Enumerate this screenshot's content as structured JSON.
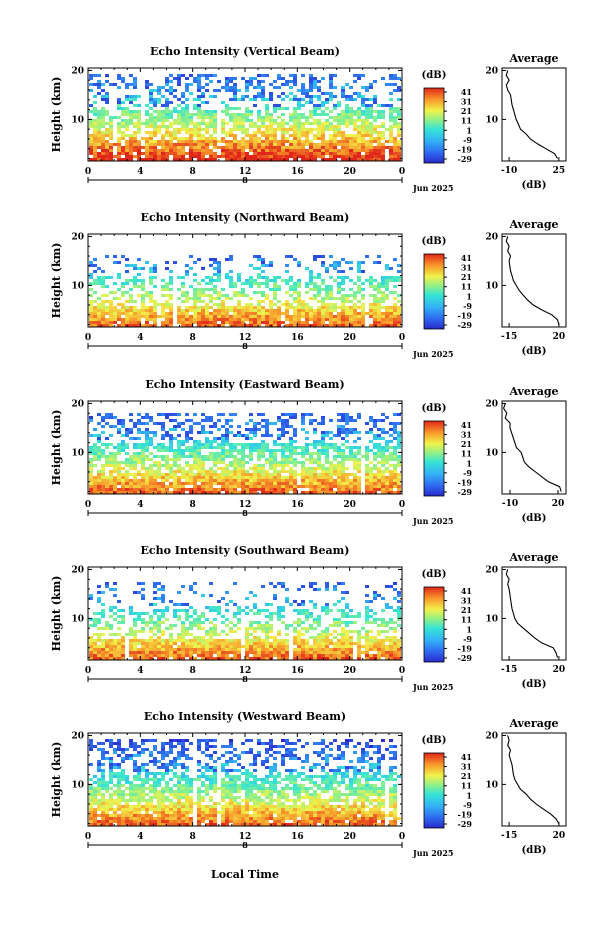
{
  "figure": {
    "footer_label": "Local Time",
    "average_title": "Average",
    "average_xlabel": "(dB)",
    "colorbar_unit": "(dB)",
    "colorbar_ticks": [
      "41",
      "31",
      "21",
      "11",
      "1",
      "-9",
      "-19",
      "-29"
    ],
    "date_label": "Jun 2025",
    "day_label": "8"
  },
  "chart_data": [
    {
      "type": "heatmap",
      "title": "Echo Intensity (Vertical Beam)",
      "ylabel": "Height (km)",
      "xlabel": "",
      "x_ticks": [
        "0",
        "4",
        "8",
        "12",
        "16",
        "20",
        "0"
      ],
      "y_ticks": [
        "20",
        "10"
      ],
      "xlim": [
        0,
        24
      ],
      "ylim": [
        1.5,
        20.5
      ],
      "color_range": [
        -29,
        41
      ],
      "profile": {
        "x_ticks": [
          "-10",
          "25"
        ],
        "xlim": [
          -15,
          30
        ],
        "points": [
          [
            24,
            2
          ],
          [
            22,
            3
          ],
          [
            16,
            4
          ],
          [
            10,
            5
          ],
          [
            5,
            6
          ],
          [
            2,
            7
          ],
          [
            -2,
            8
          ],
          [
            -5,
            10
          ],
          [
            -6,
            11
          ],
          [
            -8,
            13
          ],
          [
            -9,
            15
          ],
          [
            -11,
            16
          ],
          [
            -12,
            17
          ],
          [
            -10,
            18
          ],
          [
            -12,
            19
          ],
          [
            -11,
            20
          ]
        ]
      }
    },
    {
      "type": "heatmap",
      "title": "Echo Intensity (Northward Beam)",
      "ylabel": "Height (km)",
      "xlabel": "",
      "x_ticks": [
        "0",
        "4",
        "8",
        "12",
        "16",
        "20",
        "0"
      ],
      "y_ticks": [
        "20",
        "10"
      ],
      "xlim": [
        0,
        24
      ],
      "ylim": [
        1.5,
        20.5
      ],
      "color_range": [
        -29,
        41
      ],
      "profile": {
        "x_ticks": [
          "-15",
          "20"
        ],
        "xlim": [
          -20,
          25
        ],
        "points": [
          [
            20,
            2
          ],
          [
            19,
            3
          ],
          [
            15,
            4
          ],
          [
            8,
            5
          ],
          [
            2,
            6
          ],
          [
            -2,
            7
          ],
          [
            -5,
            8
          ],
          [
            -8,
            9
          ],
          [
            -10,
            10
          ],
          [
            -12,
            11
          ],
          [
            -13,
            12
          ],
          [
            -14,
            13
          ],
          [
            -15,
            15
          ],
          [
            -14,
            16
          ],
          [
            -16,
            17
          ],
          [
            -15,
            18
          ],
          [
            -17,
            19
          ],
          [
            -16,
            20
          ]
        ]
      }
    },
    {
      "type": "heatmap",
      "title": "Echo Intensity (Eastward Beam)",
      "ylabel": "Height (km)",
      "xlabel": "",
      "x_ticks": [
        "0",
        "4",
        "8",
        "12",
        "16",
        "20",
        "0"
      ],
      "y_ticks": [
        "20",
        "10"
      ],
      "xlim": [
        0,
        24
      ],
      "ylim": [
        1.5,
        20.5
      ],
      "color_range": [
        -29,
        41
      ],
      "profile": {
        "x_ticks": [
          "-10",
          "20"
        ],
        "xlim": [
          -15,
          25
        ],
        "points": [
          [
            22,
            2
          ],
          [
            21,
            3
          ],
          [
            14,
            4
          ],
          [
            10,
            5
          ],
          [
            6,
            6
          ],
          [
            2,
            7
          ],
          [
            -1,
            8
          ],
          [
            -3,
            10
          ],
          [
            -6,
            11
          ],
          [
            -7,
            12
          ],
          [
            -8,
            13
          ],
          [
            -10,
            15
          ],
          [
            -10,
            16
          ],
          [
            -13,
            17
          ],
          [
            -12,
            18
          ],
          [
            -14,
            19
          ],
          [
            -13,
            20
          ]
        ]
      }
    },
    {
      "type": "heatmap",
      "title": "Echo Intensity (Southward Beam)",
      "ylabel": "Height (km)",
      "xlabel": "",
      "x_ticks": [
        "0",
        "4",
        "8",
        "12",
        "16",
        "20",
        "0"
      ],
      "y_ticks": [
        "20",
        "10"
      ],
      "xlim": [
        0,
        24
      ],
      "ylim": [
        1.5,
        20.5
      ],
      "color_range": [
        -29,
        41
      ],
      "profile": {
        "x_ticks": [
          "-15",
          "20"
        ],
        "xlim": [
          -20,
          25
        ],
        "points": [
          [
            19,
            2
          ],
          [
            18,
            3
          ],
          [
            16,
            4
          ],
          [
            8,
            5
          ],
          [
            3,
            6
          ],
          [
            -1,
            7
          ],
          [
            -5,
            8
          ],
          [
            -9,
            9
          ],
          [
            -11,
            10
          ],
          [
            -12,
            11
          ],
          [
            -13,
            12
          ],
          [
            -14,
            14
          ],
          [
            -15,
            16
          ],
          [
            -16,
            17
          ],
          [
            -15,
            18
          ],
          [
            -17,
            19
          ],
          [
            -16,
            20
          ]
        ]
      }
    },
    {
      "type": "heatmap",
      "title": "Echo Intensity (Westward Beam)",
      "ylabel": "Height (km)",
      "xlabel": "Local Time",
      "x_ticks": [
        "0",
        "4",
        "8",
        "12",
        "16",
        "20",
        "0"
      ],
      "y_ticks": [
        "20",
        "10"
      ],
      "xlim": [
        0,
        24
      ],
      "ylim": [
        1.5,
        20.5
      ],
      "color_range": [
        -29,
        41
      ],
      "profile": {
        "x_ticks": [
          "-15",
          "20"
        ],
        "xlim": [
          -20,
          25
        ],
        "points": [
          [
            20,
            2
          ],
          [
            18,
            3
          ],
          [
            14,
            4
          ],
          [
            9,
            5
          ],
          [
            4,
            6
          ],
          [
            0,
            7
          ],
          [
            -3,
            8
          ],
          [
            -7,
            9
          ],
          [
            -9,
            10
          ],
          [
            -11,
            11
          ],
          [
            -12,
            12
          ],
          [
            -13,
            14
          ],
          [
            -15,
            16
          ],
          [
            -14,
            17
          ],
          [
            -16,
            18
          ],
          [
            -15,
            19
          ],
          [
            -16,
            20
          ]
        ]
      }
    }
  ]
}
